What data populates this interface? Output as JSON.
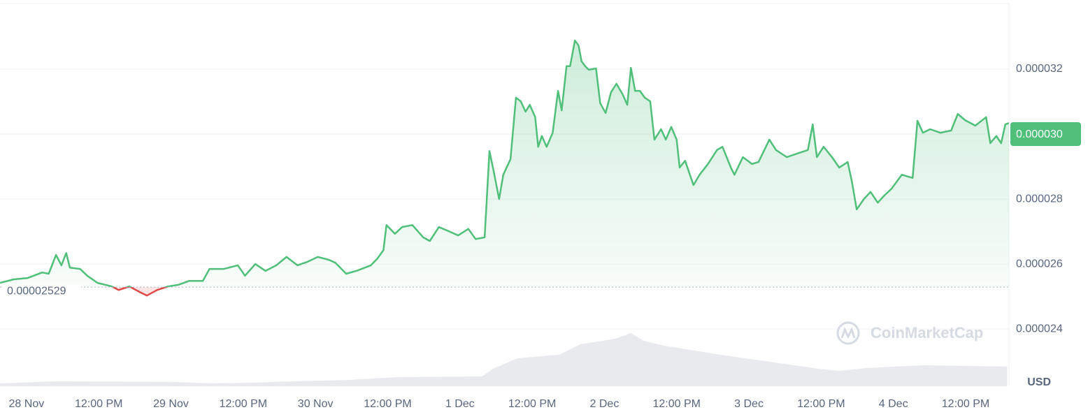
{
  "chart_data": {
    "type": "line",
    "x": [
      -4.4,
      -2.1,
      0.2,
      2.6,
      3.7,
      4.9,
      5.8,
      6.6,
      7.2,
      8.9,
      10.1,
      11.8,
      14.2,
      15.3,
      17.1,
      18.8,
      20.0,
      21.7,
      23.5,
      25.2,
      27.0,
      29.3,
      30.4,
      32.8,
      35.1,
      36.3,
      38.0,
      39.7,
      41.5,
      43.2,
      45.0,
      46.7,
      48.4,
      50.2,
      51.3,
      53.1,
      54.8,
      57.2,
      58.3,
      59.3,
      59.8,
      61.2,
      62.4,
      64.1,
      65.9,
      67.0,
      68.5,
      69.9,
      71.7,
      73.4,
      74.6,
      76.1,
      76.9,
      77.6,
      78.5,
      79.2,
      80.4,
      81.3,
      82.1,
      82.9,
      83.6,
      84.5,
      85.0,
      85.6,
      86.4,
      87.4,
      88.3,
      88.9,
      89.7,
      90.3,
      91.1,
      91.7,
      92.2,
      92.8,
      93.4,
      94.6,
      95.3,
      96.2,
      97.1,
      98.0,
      99.0,
      99.8,
      100.4,
      101.1,
      101.9,
      102.7,
      103.6,
      104.3,
      105.4,
      106.2,
      107.1,
      108.0,
      108.5,
      109.4,
      110.8,
      111.8,
      113.2,
      114.7,
      115.6,
      117.0,
      117.6,
      119.0,
      120.5,
      121.6,
      123.4,
      124.5,
      126.3,
      128.0,
      129.8,
      130.6,
      131.3,
      132.4,
      133.8,
      135.0,
      136.4,
      137.1,
      137.9,
      139.1,
      140.2,
      141.4,
      142.5,
      143.7,
      145.4,
      147.2,
      148.0,
      148.9,
      150.1,
      151.8,
      153.6,
      154.7,
      155.9,
      157.6,
      159.4,
      160.1,
      161.1,
      161.9,
      162.6,
      163.2
    ],
    "series": [
      {
        "color": "#4fbf7a",
        "values": [
          2.542e-05,
          2.553e-05,
          2.557e-05,
          2.574e-05,
          2.57e-05,
          2.628e-05,
          2.596e-05,
          2.634e-05,
          2.589e-05,
          2.585e-05,
          2.564e-05,
          2.542e-05,
          2.531e-05,
          2.52e-05,
          2.531e-05,
          2.514e-05,
          2.503e-05,
          2.52e-05,
          2.531e-05,
          2.536e-05,
          2.548e-05,
          2.548e-05,
          2.585e-05,
          2.585e-05,
          2.596e-05,
          2.564e-05,
          2.6e-05,
          2.579e-05,
          2.596e-05,
          2.622e-05,
          2.596e-05,
          2.607e-05,
          2.622e-05,
          2.613e-05,
          2.604e-05,
          2.57e-05,
          2.579e-05,
          2.596e-05,
          2.617e-05,
          2.643e-05,
          2.72e-05,
          2.693e-05,
          2.714e-05,
          2.72e-05,
          2.682e-05,
          2.671e-05,
          2.714e-05,
          2.703e-05,
          2.688e-05,
          2.708e-05,
          2.677e-05,
          2.682e-05,
          2.948e-05,
          2.886e-05,
          2.8e-05,
          2.875e-05,
          2.923e-05,
          3.112e-05,
          3.101e-05,
          3.069e-05,
          3.09e-05,
          3.052e-05,
          2.961e-05,
          2.994e-05,
          2.961e-05,
          3.004e-05,
          3.133e-05,
          3.073e-05,
          3.209e-05,
          3.209e-05,
          3.288e-05,
          3.273e-05,
          3.224e-05,
          3.209e-05,
          3.198e-05,
          3.202e-05,
          3.095e-05,
          3.065e-05,
          3.129e-05,
          3.155e-05,
          3.123e-05,
          3.09e-05,
          3.204e-05,
          3.133e-05,
          3.133e-05,
          3.112e-05,
          3.101e-05,
          2.983e-05,
          3.015e-05,
          2.983e-05,
          3.022e-05,
          2.983e-05,
          2.897e-05,
          2.918e-05,
          2.843e-05,
          2.875e-05,
          2.908e-05,
          2.951e-05,
          2.961e-05,
          2.897e-05,
          2.875e-05,
          2.929e-05,
          2.908e-05,
          2.914e-05,
          2.983e-05,
          2.951e-05,
          2.929e-05,
          2.94e-05,
          2.951e-05,
          3.03e-05,
          2.929e-05,
          2.961e-05,
          2.929e-05,
          2.897e-05,
          2.914e-05,
          2.854e-05,
          2.768e-05,
          2.8e-05,
          2.822e-05,
          2.789e-05,
          2.811e-05,
          2.832e-05,
          2.875e-05,
          2.865e-05,
          3.041e-05,
          3.004e-05,
          3.015e-05,
          3.004e-05,
          3.011e-05,
          3.062e-05,
          3.043e-05,
          3.026e-05,
          3.052e-05,
          2.972e-05,
          2.994e-05,
          2.972e-05,
          3.03e-05,
          3.034e-05
        ]
      }
    ],
    "down_color": "#e04848",
    "xlim": [
      -4.4,
      163.2
    ],
    "xticks": [
      {
        "value": 0,
        "label": "28 Nov"
      },
      {
        "value": 12,
        "label": "12:00 PM"
      },
      {
        "value": 24,
        "label": "29 Nov"
      },
      {
        "value": 36,
        "label": "12:00 PM"
      },
      {
        "value": 48,
        "label": "30 Nov"
      },
      {
        "value": 60,
        "label": "12:00 PM"
      },
      {
        "value": 72,
        "label": "1 Dec"
      },
      {
        "value": 84,
        "label": "12:00 PM"
      },
      {
        "value": 96,
        "label": "2 Dec"
      },
      {
        "value": 108,
        "label": "12:00 PM"
      },
      {
        "value": 120,
        "label": "3 Dec"
      },
      {
        "value": 132,
        "label": "12:00 PM"
      },
      {
        "value": 144,
        "label": "4 Dec"
      },
      {
        "value": 156,
        "label": "12:00 PM"
      }
    ],
    "ylim": [
      2.224e-05,
      3.402e-05
    ],
    "yticks": [
      2.4e-05,
      2.6e-05,
      2.8e-05,
      {
        "value": 3e-05,
        "label": "0.000030"
      },
      3.2e-05
    ],
    "grid": true,
    "baseline": 2.529e-05,
    "last_price": {
      "value": 3e-05,
      "label": "0.000030"
    },
    "volume": {
      "color": "#e8eaee",
      "x": [
        -4.4,
        4.9,
        24.6,
        30.4,
        37.4,
        44.4,
        53.7,
        61.8,
        75.7,
        77.5,
        81.6,
        88.5,
        92.0,
        97.8,
        100.4,
        102.5,
        105.9,
        115.2,
        123.4,
        131.5,
        135.0,
        139.6,
        148.9,
        162.9
      ],
      "values": [
        4,
        7,
        6,
        4,
        5,
        7,
        9,
        13,
        14,
        25,
        40,
        45,
        60,
        68,
        76,
        65,
        58,
        45,
        35,
        25,
        22,
        26,
        30,
        28
      ]
    },
    "watermark": "CoinMarketCap",
    "currency": "USD"
  }
}
